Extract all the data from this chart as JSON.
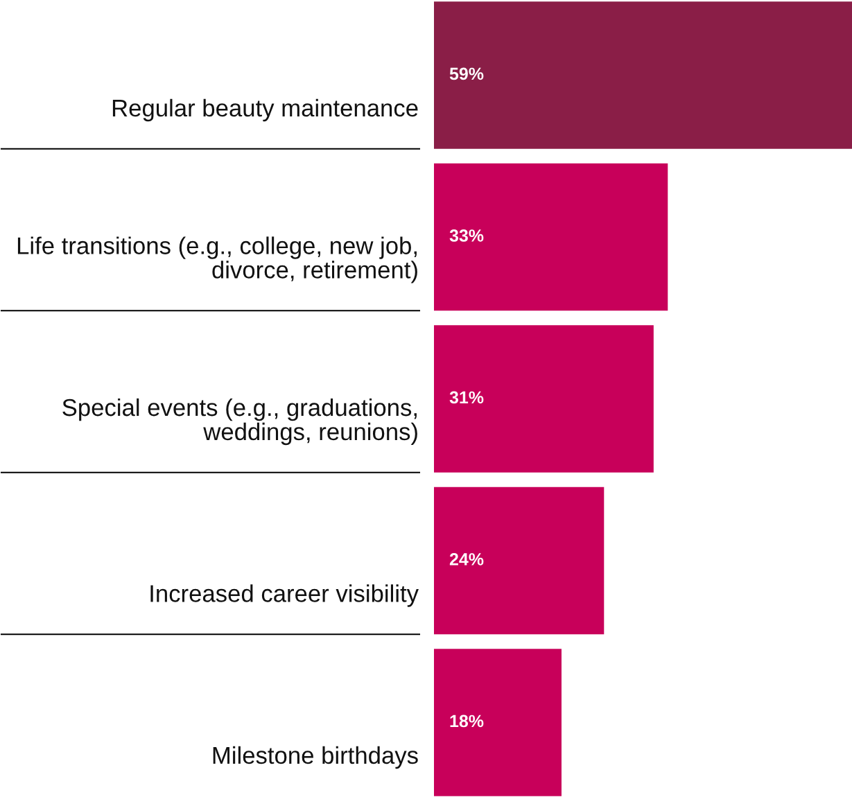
{
  "chart_data": {
    "type": "bar",
    "orientation": "horizontal",
    "categories": [
      "Regular beauty maintenance",
      "Life transitions (e.g., college, new job, divorce, retirement)",
      "Special events (e.g., graduations, weddings, reunions)",
      "Increased career visibility",
      "Milestone birthdays"
    ],
    "values": [
      59,
      33,
      31,
      24,
      18
    ],
    "colors": [
      "#8a1e47",
      "#c8005a",
      "#c8005a",
      "#c8005a",
      "#c8005a"
    ],
    "value_labels": [
      "59%",
      "33%",
      "31%",
      "24%",
      "18%"
    ],
    "legend": false
  }
}
